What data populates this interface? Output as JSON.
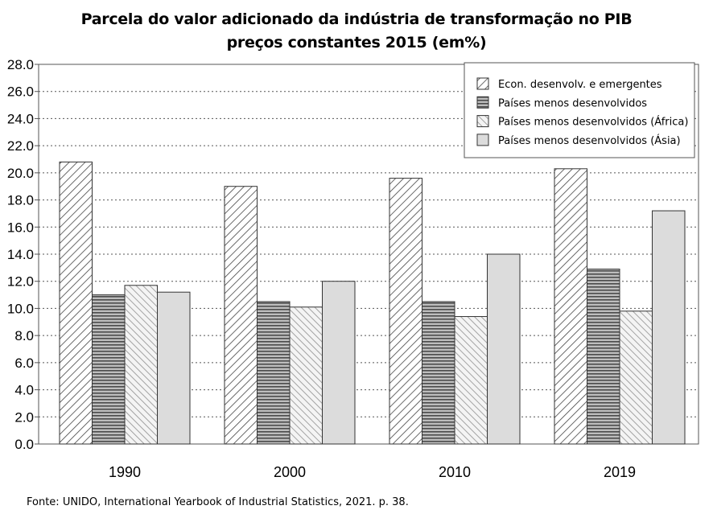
{
  "title_line1": "Parcela do valor adicionado da indústria de transformação no PIB",
  "title_line2": "preços constantes 2015 (em%)",
  "source": "Fonte: UNIDO, International Yearbook of Industrial Statistics, 2021. p. 38.",
  "chart_data": {
    "type": "bar",
    "title": "Parcela do valor adicionado da indústria de transformação no PIB preços constantes 2015 (em%)",
    "categories": [
      "1990",
      "2000",
      "2010",
      "2019"
    ],
    "series": [
      {
        "name": "Econ. desenvolv. e emergentes",
        "pattern": "diagonal-hatch",
        "values": [
          20.8,
          19.0,
          19.6,
          20.3
        ]
      },
      {
        "name": "Países menos desenvolvidos",
        "pattern": "horizontal-stripes",
        "values": [
          11.0,
          10.5,
          10.5,
          12.9
        ]
      },
      {
        "name": "Países menos desenvolvidos (África)",
        "pattern": "light-diagonal-hatch",
        "values": [
          11.7,
          10.1,
          9.4,
          9.8
        ]
      },
      {
        "name": "Países menos desenvolvidos (Ásia)",
        "pattern": "solid-light-gray",
        "values": [
          11.2,
          12.0,
          14.0,
          17.2
        ]
      }
    ],
    "ylim": [
      0,
      28
    ],
    "yticks": [
      "0.0",
      "2.0",
      "4.0",
      "6.0",
      "8.0",
      "10.0",
      "12.0",
      "14.0",
      "16.0",
      "18.0",
      "20.0",
      "22.0",
      "24.0",
      "26.0",
      "28.0"
    ],
    "grid": "horizontal dotted",
    "legend_position": "top-right",
    "colors": {
      "bar_fill": "#dcdcdc",
      "bar_stroke": "#333333",
      "stripe": "#555555",
      "grid": "#555555"
    }
  }
}
